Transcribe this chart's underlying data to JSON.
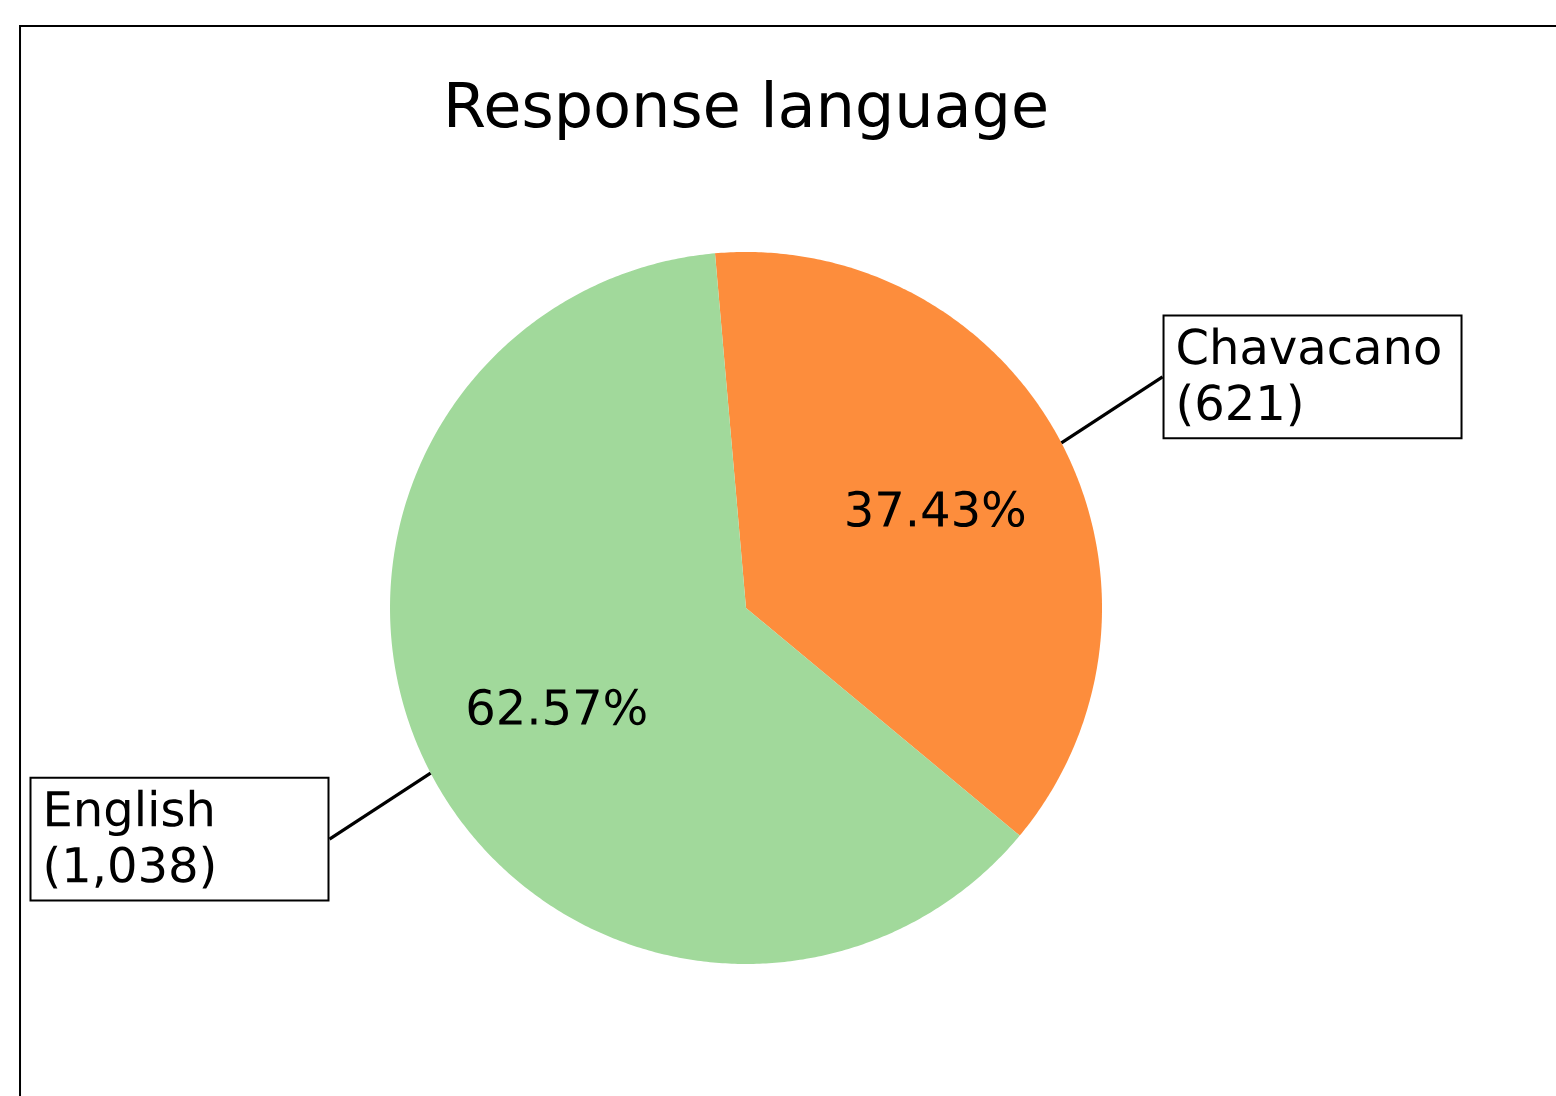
{
  "chart_data": {
    "type": "pie",
    "title": "Response language",
    "categories": [
      "Chavacano (621)",
      "English (1,038)"
    ],
    "values": [
      37.43,
      62.57
    ],
    "colors": [
      "#fd8d3c",
      "#a1d99b"
    ],
    "value_labels": [
      "37.43%",
      "62.57%"
    ]
  }
}
